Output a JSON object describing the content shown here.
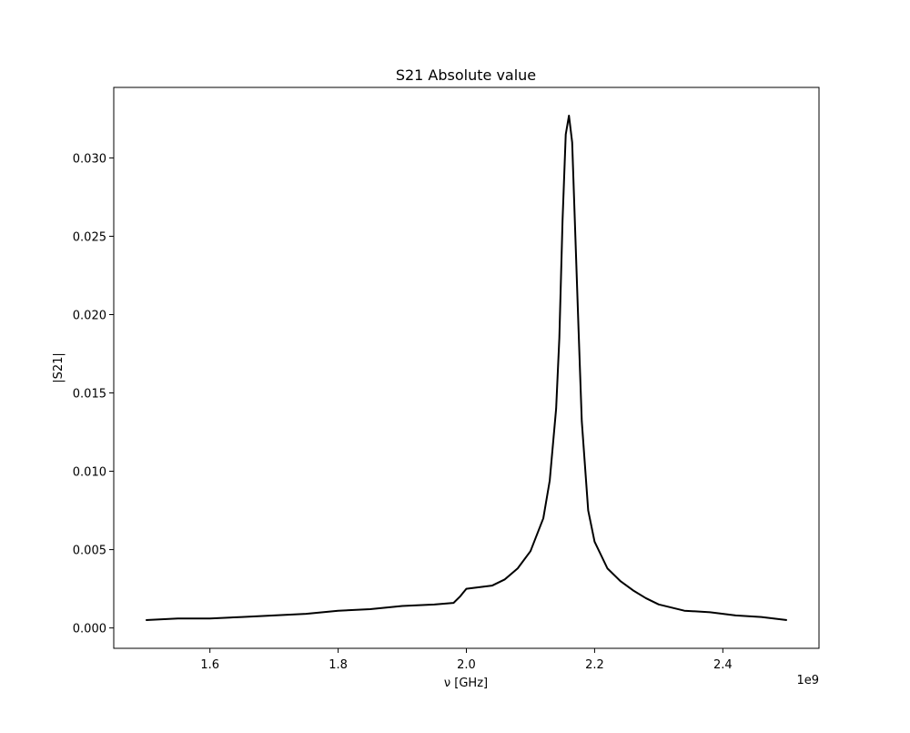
{
  "chart_data": {
    "type": "line",
    "title": "S21 Absolute value",
    "xlabel": "ν [GHz]",
    "ylabel": "|S21|",
    "x_offset_label": "1e9",
    "xlim": [
      1.45,
      2.55
    ],
    "ylim": [
      -0.0013,
      0.0345
    ],
    "x_ticks": [
      1.6,
      1.8,
      2.0,
      2.2,
      2.4
    ],
    "x_tick_labels": [
      "1.6",
      "1.8",
      "2.0",
      "2.2",
      "2.4"
    ],
    "y_ticks": [
      0.0,
      0.005,
      0.01,
      0.015,
      0.02,
      0.025,
      0.03
    ],
    "y_tick_labels": [
      "0.000",
      "0.005",
      "0.010",
      "0.015",
      "0.020",
      "0.025",
      "0.030"
    ],
    "grid": false,
    "series": [
      {
        "color": "#000000",
        "x": [
          1.5,
          1.55,
          1.6,
          1.65,
          1.7,
          1.75,
          1.8,
          1.85,
          1.9,
          1.95,
          1.98,
          1.99,
          2.0,
          2.02,
          2.04,
          2.06,
          2.08,
          2.1,
          2.12,
          2.13,
          2.14,
          2.145,
          2.15,
          2.155,
          2.16,
          2.165,
          2.17,
          2.175,
          2.18,
          2.19,
          2.2,
          2.22,
          2.24,
          2.26,
          2.28,
          2.3,
          2.34,
          2.38,
          2.42,
          2.46,
          2.5
        ],
        "y": [
          0.0005,
          0.0006,
          0.0006,
          0.0007,
          0.0008,
          0.0009,
          0.0011,
          0.0012,
          0.0014,
          0.0015,
          0.0016,
          0.002,
          0.0025,
          0.0026,
          0.0027,
          0.0031,
          0.0038,
          0.0049,
          0.007,
          0.0094,
          0.014,
          0.0185,
          0.026,
          0.0315,
          0.0327,
          0.031,
          0.025,
          0.019,
          0.0132,
          0.0075,
          0.0055,
          0.0038,
          0.003,
          0.0024,
          0.0019,
          0.0015,
          0.0011,
          0.001,
          0.0008,
          0.0007,
          0.0005
        ]
      }
    ]
  }
}
